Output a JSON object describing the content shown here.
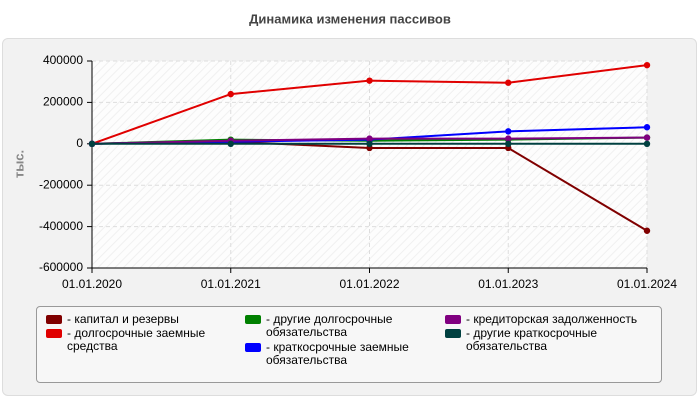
{
  "chart_data": {
    "type": "line",
    "title": "Динамика изменения пассивов",
    "y_label": "тыс.",
    "categories": [
      "01.01.2020",
      "01.01.2021",
      "01.01.2022",
      "01.01.2023",
      "01.01.2024"
    ],
    "ylim": [
      -600000,
      400000
    ],
    "yticks": [
      -600000,
      -400000,
      -200000,
      0,
      200000,
      400000
    ],
    "grid": true,
    "series": [
      {
        "name": "- капитал и резервы",
        "color": "#800000",
        "values": [
          0,
          10000,
          -20000,
          -20000,
          -420000
        ]
      },
      {
        "name": "- долгосрочные заемные средства",
        "color": "#e00000",
        "values": [
          0,
          240000,
          305000,
          295000,
          380000
        ]
      },
      {
        "name": "- другие долгосрочные обязательства",
        "color": "#008000",
        "values": [
          0,
          20000,
          15000,
          20000,
          30000
        ]
      },
      {
        "name": "- краткосрочные заемные обязательства",
        "color": "#0000ff",
        "values": [
          0,
          10000,
          20000,
          60000,
          80000
        ]
      },
      {
        "name": "- кредиторская задолженность",
        "color": "#800080",
        "values": [
          0,
          15000,
          25000,
          25000,
          30000
        ]
      },
      {
        "name": "- другие краткосрочные обязательства",
        "color": "#004040",
        "values": [
          0,
          0,
          0,
          0,
          0
        ]
      }
    ]
  }
}
